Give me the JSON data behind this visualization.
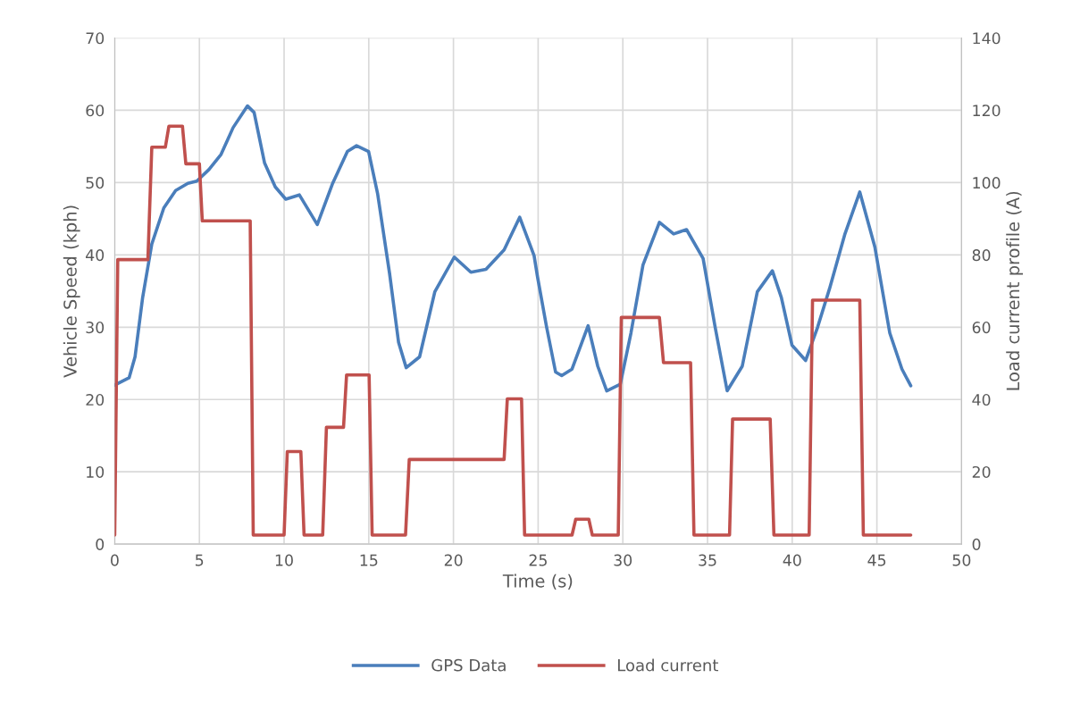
{
  "chart_data": {
    "type": "line",
    "xlabel": "Time (s)",
    "ylabel": "Vehicle Speed (kph)",
    "y2label": "Load current profile (A)",
    "xlim": [
      0,
      50
    ],
    "xticks": [
      0,
      5,
      10,
      15,
      20,
      25,
      30,
      35,
      40,
      45,
      50
    ],
    "ylim": [
      0,
      70
    ],
    "yticks": [
      0,
      10,
      20,
      30,
      40,
      50,
      60,
      70
    ],
    "y2lim": [
      0,
      140
    ],
    "y2ticks": [
      0,
      20,
      40,
      60,
      80,
      100,
      120,
      140
    ],
    "grid": true,
    "legend": "bottom",
    "marker": "none",
    "line_style": "solid",
    "series": [
      {
        "name": "GPS Data",
        "color": "#4a7ebb",
        "x": [
          0,
          0.85,
          1.2,
          1.65,
          2.19,
          2.9,
          3.6,
          4.32,
          4.85,
          5.56,
          6.28,
          6.99,
          7.84,
          8.23,
          8.85,
          9.48,
          10.1,
          10.9,
          11.96,
          12.85,
          13.74,
          14.28,
          14.99,
          15.52,
          16.23,
          16.76,
          17.21,
          18.0,
          18.9,
          20.05,
          21.03,
          21.92,
          22.99,
          23.91,
          24.76,
          24.96,
          25.5,
          26.03,
          26.39,
          27.0,
          27.95,
          28.52,
          29.05,
          29.85,
          30.48,
          31.19,
          32.16,
          33.0,
          33.76,
          34.74,
          35.45,
          36.16,
          37.05,
          37.94,
          38.83,
          39.36,
          39.99,
          40.79,
          41.5,
          42.2,
          43.1,
          43.99,
          44.88,
          45.76,
          46.48,
          47.0
        ],
        "values": [
          22.0,
          23.0,
          25.9,
          34.1,
          41.5,
          46.5,
          48.9,
          49.9,
          50.2,
          51.8,
          53.9,
          57.6,
          60.6,
          59.7,
          52.7,
          49.4,
          47.7,
          48.3,
          44.2,
          49.8,
          54.3,
          55.1,
          54.3,
          48.5,
          37.4,
          27.9,
          24.4,
          25.9,
          34.9,
          39.7,
          37.6,
          38.0,
          40.7,
          45.2,
          39.9,
          37.0,
          30.0,
          23.8,
          23.3,
          24.2,
          30.2,
          24.6,
          21.2,
          22.1,
          29.2,
          38.6,
          44.5,
          42.9,
          43.5,
          39.5,
          30.0,
          21.2,
          24.6,
          34.9,
          37.8,
          34.1,
          27.5,
          25.4,
          30.0,
          35.3,
          42.8,
          48.7,
          41.1,
          29.2,
          24.2,
          21.9
        ]
      },
      {
        "name": "Load current",
        "color": "#c0504d",
        "axis": "y2",
        "x": [
          0,
          0.18,
          1.96,
          2.19,
          2.99,
          3.2,
          4.0,
          4.2,
          5.0,
          5.17,
          8.0,
          8.18,
          10.0,
          10.19,
          10.99,
          11.18,
          12.28,
          12.5,
          13.51,
          13.69,
          15.02,
          15.2,
          17.17,
          17.39,
          22.99,
          23.18,
          24.02,
          24.2,
          27.0,
          27.22,
          27.99,
          28.2,
          29.73,
          29.91,
          32.16,
          32.4,
          34.0,
          34.2,
          36.3,
          36.48,
          38.7,
          38.92,
          41.0,
          41.2,
          43.99,
          44.2,
          47.0
        ],
        "values": [
          2.5,
          78.7,
          78.7,
          109.8,
          109.8,
          115.6,
          115.6,
          105.2,
          105.2,
          89.4,
          89.4,
          2.5,
          2.5,
          25.6,
          25.6,
          2.5,
          2.5,
          32.3,
          32.3,
          46.8,
          46.8,
          2.5,
          2.5,
          23.4,
          23.4,
          40.2,
          40.2,
          2.5,
          2.5,
          6.9,
          6.9,
          2.5,
          2.5,
          62.7,
          62.7,
          50.2,
          50.2,
          2.5,
          2.5,
          34.6,
          34.6,
          2.5,
          2.5,
          67.5,
          67.5,
          2.5,
          2.5
        ]
      }
    ]
  }
}
